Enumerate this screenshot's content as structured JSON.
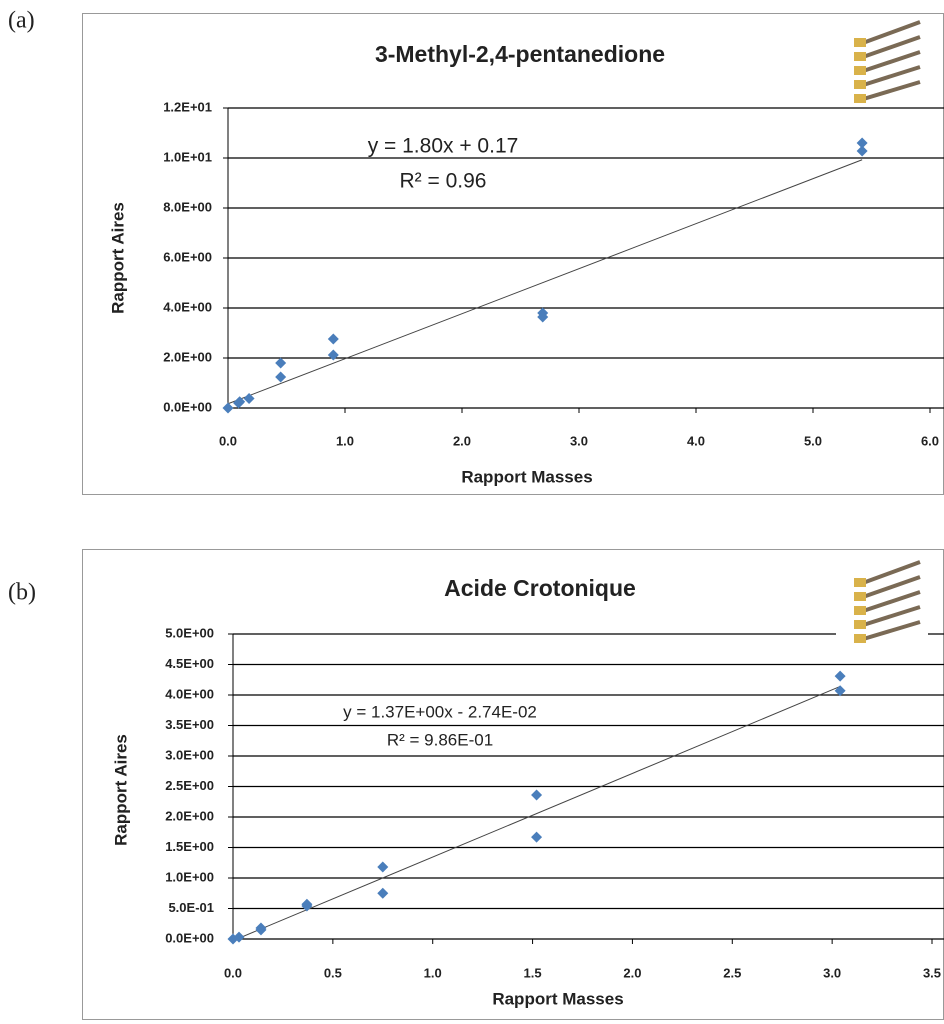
{
  "chart_data": [
    {
      "type": "scatter",
      "panel": "(a)",
      "title": "3-Methyl-2,4-pentanedione",
      "x_label": "Rapport Masses",
      "y_label": "Rapport Aires",
      "annotations": [
        "y = 1.80x + 0.17",
        "R² = 0.96"
      ],
      "x": [
        0,
        0.09,
        0.1,
        0.18,
        0.45,
        0.45,
        0.9,
        0.9,
        2.69,
        2.69,
        5.42,
        5.42
      ],
      "y": [
        0,
        0.2,
        0.25,
        0.38,
        1.8,
        1.24,
        2.76,
        2.12,
        3.8,
        3.64,
        10.6,
        10.28
      ],
      "color": "#4a7ebb",
      "trendline": {
        "x": [
          0,
          5.42
        ],
        "y": [
          0.17,
          9.93
        ]
      },
      "xlim": [
        0,
        6
      ],
      "ylim": [
        0,
        12
      ],
      "xticks": [
        {
          "value": 0,
          "label": "0.0"
        },
        {
          "value": 1,
          "label": "1.0"
        },
        {
          "value": 2,
          "label": "2.0"
        },
        {
          "value": 3,
          "label": "3.0"
        },
        {
          "value": 4,
          "label": "4.0"
        },
        {
          "value": 5,
          "label": "5.0"
        },
        {
          "value": 6,
          "label": "6.0"
        }
      ],
      "yticks": [
        {
          "value": 0,
          "label": "0.0E+00"
        },
        {
          "value": 2,
          "label": "2.0E+00"
        },
        {
          "value": 4,
          "label": "4.0E+00"
        },
        {
          "value": 6,
          "label": "6.0E+00"
        },
        {
          "value": 8,
          "label": "8.0E+00"
        },
        {
          "value": 10,
          "label": "1.0E+01"
        },
        {
          "value": 12,
          "label": "1.2E+01"
        }
      ],
      "grid": true
    },
    {
      "type": "scatter",
      "panel": "(b)",
      "title": "Acide Crotonique",
      "x_label": "Rapport Masses",
      "y_label": "Rapport Aires",
      "annotations": [
        "y = 1.37E+00x - 2.74E-02",
        "R² = 9.86E-01"
      ],
      "x": [
        0,
        0.03,
        0.14,
        0.14,
        0.37,
        0.37,
        0.75,
        0.75,
        1.52,
        1.52,
        3.04,
        3.04
      ],
      "y": [
        0,
        0.03,
        0.15,
        0.18,
        0.54,
        0.57,
        1.18,
        0.75,
        2.36,
        1.67,
        4.31,
        4.07
      ],
      "color": "#4a7ebb",
      "trendline": {
        "x": [
          0,
          3.04
        ],
        "y": [
          -0.0274,
          4.14
        ]
      },
      "xlim": [
        0,
        3.5
      ],
      "ylim": [
        0,
        5
      ],
      "xticks": [
        {
          "value": 0,
          "label": "0.0"
        },
        0.5,
        {
          "value": 1,
          "label": "1.0"
        },
        1.5,
        {
          "value": 2,
          "label": "2.0"
        },
        2.5,
        {
          "value": 3,
          "label": "3.0"
        },
        3.5
      ],
      "yticks": [
        {
          "value": 0,
          "label": "0.0E+00"
        },
        {
          "value": 0.5,
          "label": "5.0E-01"
        },
        {
          "value": 1,
          "label": "1.0E+00"
        },
        {
          "value": 1.5,
          "label": "1.5E+00"
        },
        {
          "value": 2,
          "label": "2.0E+00"
        },
        {
          "value": 2.5,
          "label": "2.5E+00"
        },
        {
          "value": 3,
          "label": "3.0E+00"
        },
        {
          "value": 3.5,
          "label": "3.5E+00"
        },
        {
          "value": 4,
          "label": "4.0E+00"
        },
        {
          "value": 4.5,
          "label": "4.5E+00"
        },
        {
          "value": 5,
          "label": "5.0E+00"
        }
      ],
      "grid": true
    }
  ]
}
